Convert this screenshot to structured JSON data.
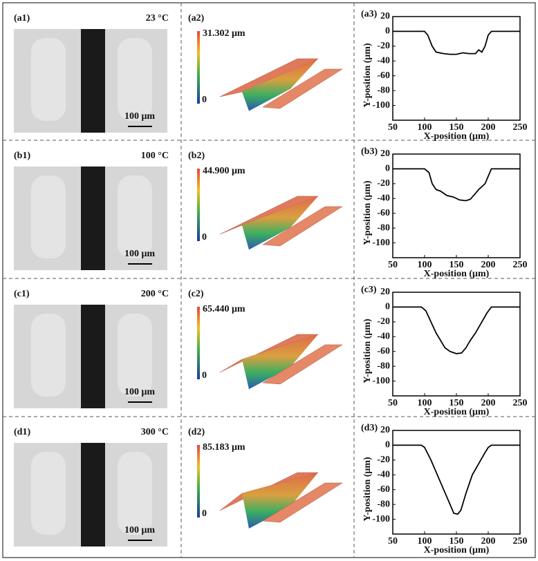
{
  "micrographs": [
    {
      "label": "(a1)",
      "temperature": "23 °C",
      "scale_bar": "100 μm"
    },
    {
      "label": "(b1)",
      "temperature": "100 °C",
      "scale_bar": "100 μm"
    },
    {
      "label": "(c1)",
      "temperature": "200 °C",
      "scale_bar": "100 μm"
    },
    {
      "label": "(d1)",
      "temperature": "300 °C",
      "scale_bar": "100 μm"
    }
  ],
  "surfaces": [
    {
      "label": "(a2)",
      "max_height": "31.302 μm",
      "min_height": "0"
    },
    {
      "label": "(b2)",
      "max_height": "44.900 μm",
      "min_height": "0"
    },
    {
      "label": "(c2)",
      "max_height": "65.440 μm",
      "min_height": "0"
    },
    {
      "label": "(d2)",
      "max_height": "85.183 μm",
      "min_height": "0"
    }
  ],
  "chart_data": [
    {
      "type": "line",
      "title": "(a3)",
      "x_label": "X-position (μm)",
      "y_label": "Y-position (μm)",
      "color": "#000000",
      "x": [
        50,
        100,
        105,
        112,
        118,
        130,
        140,
        150,
        160,
        170,
        180,
        185,
        190,
        195,
        200,
        205,
        250
      ],
      "y": [
        0,
        0,
        -5,
        -20,
        -28,
        -30,
        -31,
        -31,
        -29,
        -30,
        -30,
        -25,
        -28,
        -20,
        -5,
        0,
        0
      ],
      "xlim": [
        50,
        250
      ],
      "xticks": [
        50,
        100,
        150,
        200,
        250
      ],
      "ylim": [
        -120,
        20
      ],
      "yticks": [
        20,
        0,
        -20,
        -40,
        -60,
        -80,
        -100
      ]
    },
    {
      "type": "line",
      "title": "(b3)",
      "x_label": "X-position (μm)",
      "y_label": "Y-position (μm)",
      "color": "#000000",
      "x": [
        50,
        100,
        107,
        112,
        118,
        125,
        135,
        145,
        155,
        165,
        172,
        178,
        185,
        195,
        200,
        205,
        250
      ],
      "y": [
        0,
        0,
        -5,
        -20,
        -28,
        -30,
        -36,
        -38,
        -42,
        -43,
        -41,
        -35,
        -28,
        -20,
        -10,
        0,
        0
      ],
      "xlim": [
        50,
        250
      ],
      "xticks": [
        50,
        100,
        150,
        200,
        250
      ],
      "ylim": [
        -120,
        20
      ],
      "yticks": [
        20,
        0,
        -20,
        -40,
        -60,
        -80,
        -100
      ]
    },
    {
      "type": "line",
      "title": "(c3)",
      "x_label": "X-position (μm)",
      "y_label": "Y-position (μm)",
      "color": "#000000",
      "x": [
        50,
        95,
        102,
        110,
        118,
        125,
        132,
        140,
        150,
        158,
        165,
        172,
        180,
        190,
        198,
        205,
        250
      ],
      "y": [
        0,
        0,
        -5,
        -20,
        -35,
        -45,
        -55,
        -60,
        -63,
        -62,
        -55,
        -45,
        -35,
        -20,
        -8,
        0,
        0
      ],
      "xlim": [
        50,
        250
      ],
      "xticks": [
        50,
        100,
        150,
        200,
        250
      ],
      "ylim": [
        -120,
        20
      ],
      "yticks": [
        20,
        0,
        -20,
        -40,
        -60,
        -80,
        -100
      ]
    },
    {
      "type": "line",
      "title": "(d3)",
      "x_label": "X-position (μm)",
      "y_label": "Y-position (μm)",
      "color": "#000000",
      "x": [
        50,
        95,
        100,
        110,
        120,
        130,
        140,
        146,
        152,
        157,
        165,
        175,
        185,
        195,
        200,
        205,
        250
      ],
      "y": [
        0,
        0,
        -3,
        -20,
        -40,
        -60,
        -80,
        -92,
        -93,
        -88,
        -65,
        -40,
        -25,
        -10,
        -3,
        0,
        0
      ],
      "xlim": [
        50,
        250
      ],
      "xticks": [
        50,
        100,
        150,
        200,
        250
      ],
      "ylim": [
        -120,
        20
      ],
      "yticks": [
        20,
        0,
        -20,
        -40,
        -60,
        -80,
        -100
      ]
    }
  ]
}
